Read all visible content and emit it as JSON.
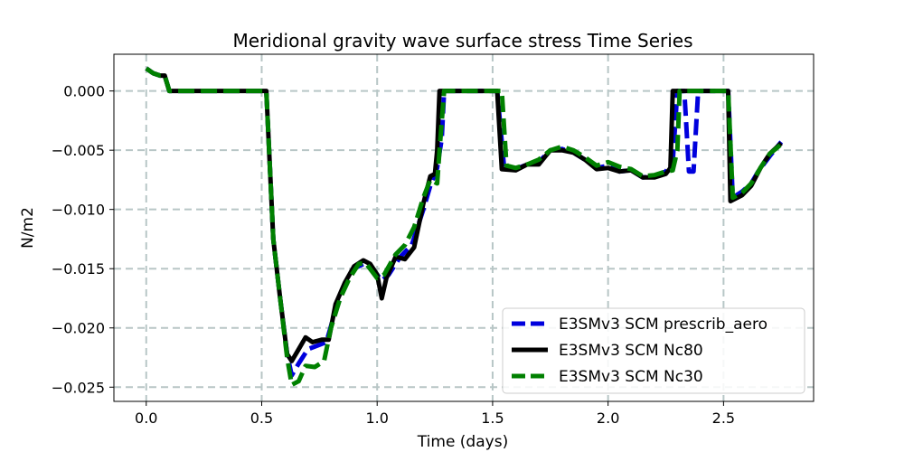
{
  "chart_data": {
    "type": "line",
    "title": "Meridional gravity wave surface stress Time Series",
    "xlabel": "Time (days)",
    "ylabel": "N/m2",
    "xlim": [
      -0.14,
      2.89
    ],
    "ylim": [
      -0.0262,
      0.0031
    ],
    "xticks": [
      0.0,
      0.5,
      1.0,
      1.5,
      2.0,
      2.5
    ],
    "xtick_labels": [
      "0.0",
      "0.5",
      "1.0",
      "1.5",
      "2.0",
      "2.5"
    ],
    "yticks": [
      0.0,
      -0.005,
      -0.01,
      -0.015,
      -0.02,
      -0.025
    ],
    "ytick_labels": [
      "0.000",
      "−0.005",
      "−0.010",
      "−0.015",
      "−0.020",
      "−0.025"
    ],
    "grid": true,
    "legend_position": "lower-right",
    "series": [
      {
        "name": "E3SMv3 SCM prescrib_aero",
        "color": "#0000dd",
        "style": "dashed",
        "points": [
          [
            0.0,
            0.0019
          ],
          [
            0.03,
            0.0015
          ],
          [
            0.06,
            0.0013
          ],
          [
            0.08,
            0.0013
          ],
          [
            0.1,
            0.0
          ],
          [
            0.5,
            0.0
          ],
          [
            0.52,
            0.0
          ],
          [
            0.55,
            -0.0125
          ],
          [
            0.58,
            -0.0175
          ],
          [
            0.61,
            -0.0222
          ],
          [
            0.63,
            -0.024
          ],
          [
            0.66,
            -0.023
          ],
          [
            0.7,
            -0.0218
          ],
          [
            0.74,
            -0.0215
          ],
          [
            0.78,
            -0.0212
          ],
          [
            0.82,
            -0.0185
          ],
          [
            0.86,
            -0.0165
          ],
          [
            0.9,
            -0.015
          ],
          [
            0.95,
            -0.0145
          ],
          [
            1.0,
            -0.0155
          ],
          [
            1.02,
            -0.016
          ],
          [
            1.05,
            -0.0155
          ],
          [
            1.1,
            -0.014
          ],
          [
            1.15,
            -0.013
          ],
          [
            1.2,
            -0.01
          ],
          [
            1.23,
            -0.008
          ],
          [
            1.26,
            -0.0065
          ],
          [
            1.28,
            -0.004
          ],
          [
            1.29,
            0.0
          ],
          [
            1.52,
            0.0
          ],
          [
            1.55,
            -0.0065
          ],
          [
            1.6,
            -0.0066
          ],
          [
            1.65,
            -0.0062
          ],
          [
            1.7,
            -0.006
          ],
          [
            1.75,
            -0.005
          ],
          [
            1.8,
            -0.0049
          ],
          [
            1.85,
            -0.0052
          ],
          [
            1.9,
            -0.0058
          ],
          [
            1.95,
            -0.0065
          ],
          [
            2.0,
            -0.0063
          ],
          [
            2.05,
            -0.0068
          ],
          [
            2.1,
            -0.0067
          ],
          [
            2.15,
            -0.0073
          ],
          [
            2.2,
            -0.0072
          ],
          [
            2.25,
            -0.0068
          ],
          [
            2.28,
            -0.006
          ],
          [
            2.3,
            0.0
          ],
          [
            2.33,
            0.0
          ],
          [
            2.35,
            -0.0068
          ],
          [
            2.37,
            -0.0068
          ],
          [
            2.39,
            0.0
          ],
          [
            2.52,
            0.0
          ],
          [
            2.54,
            -0.009
          ],
          [
            2.58,
            -0.0085
          ],
          [
            2.62,
            -0.0078
          ],
          [
            2.65,
            -0.0068
          ],
          [
            2.7,
            -0.0055
          ],
          [
            2.75,
            -0.0043
          ]
        ]
      },
      {
        "name": "E3SMv3 SCM Nc80",
        "color": "#000000",
        "style": "solid",
        "points": [
          [
            0.0,
            0.0019
          ],
          [
            0.03,
            0.0015
          ],
          [
            0.06,
            0.0013
          ],
          [
            0.08,
            0.0013
          ],
          [
            0.1,
            0.0
          ],
          [
            0.5,
            0.0
          ],
          [
            0.52,
            0.0
          ],
          [
            0.55,
            -0.0125
          ],
          [
            0.58,
            -0.0175
          ],
          [
            0.61,
            -0.0222
          ],
          [
            0.63,
            -0.0228
          ],
          [
            0.66,
            -0.0218
          ],
          [
            0.69,
            -0.0208
          ],
          [
            0.72,
            -0.0212
          ],
          [
            0.76,
            -0.021
          ],
          [
            0.79,
            -0.021
          ],
          [
            0.82,
            -0.018
          ],
          [
            0.86,
            -0.0162
          ],
          [
            0.9,
            -0.0148
          ],
          [
            0.94,
            -0.0143
          ],
          [
            0.97,
            -0.0146
          ],
          [
            1.0,
            -0.0155
          ],
          [
            1.02,
            -0.0175
          ],
          [
            1.04,
            -0.0158
          ],
          [
            1.08,
            -0.014
          ],
          [
            1.12,
            -0.0142
          ],
          [
            1.16,
            -0.0132
          ],
          [
            1.2,
            -0.0095
          ],
          [
            1.23,
            -0.0072
          ],
          [
            1.25,
            -0.007
          ],
          [
            1.26,
            -0.005
          ],
          [
            1.27,
            0.0
          ],
          [
            1.52,
            0.0
          ],
          [
            1.54,
            -0.0066
          ],
          [
            1.6,
            -0.0067
          ],
          [
            1.65,
            -0.0062
          ],
          [
            1.7,
            -0.0062
          ],
          [
            1.75,
            -0.005
          ],
          [
            1.8,
            -0.005
          ],
          [
            1.85,
            -0.0052
          ],
          [
            1.9,
            -0.0058
          ],
          [
            1.95,
            -0.0066
          ],
          [
            2.0,
            -0.0065
          ],
          [
            2.05,
            -0.0068
          ],
          [
            2.1,
            -0.0067
          ],
          [
            2.15,
            -0.0073
          ],
          [
            2.2,
            -0.0073
          ],
          [
            2.25,
            -0.007
          ],
          [
            2.27,
            -0.0065
          ],
          [
            2.28,
            0.0
          ],
          [
            2.52,
            0.0
          ],
          [
            2.53,
            -0.0093
          ],
          [
            2.58,
            -0.0088
          ],
          [
            2.62,
            -0.008
          ],
          [
            2.66,
            -0.0065
          ],
          [
            2.7,
            -0.0053
          ],
          [
            2.75,
            -0.0044
          ]
        ]
      },
      {
        "name": "E3SMv3 SCM Nc30",
        "color": "#008000",
        "style": "dashed",
        "points": [
          [
            0.0,
            0.0019
          ],
          [
            0.03,
            0.0015
          ],
          [
            0.06,
            0.0013
          ],
          [
            0.08,
            0.0013
          ],
          [
            0.1,
            0.0
          ],
          [
            0.5,
            0.0
          ],
          [
            0.52,
            0.0
          ],
          [
            0.55,
            -0.0125
          ],
          [
            0.58,
            -0.0175
          ],
          [
            0.61,
            -0.0225
          ],
          [
            0.63,
            -0.0248
          ],
          [
            0.66,
            -0.0245
          ],
          [
            0.69,
            -0.0232
          ],
          [
            0.73,
            -0.0233
          ],
          [
            0.77,
            -0.0228
          ],
          [
            0.8,
            -0.02
          ],
          [
            0.84,
            -0.0175
          ],
          [
            0.88,
            -0.0158
          ],
          [
            0.92,
            -0.0146
          ],
          [
            0.95,
            -0.0145
          ],
          [
            1.0,
            -0.0158
          ],
          [
            1.03,
            -0.0155
          ],
          [
            1.08,
            -0.0138
          ],
          [
            1.12,
            -0.013
          ],
          [
            1.16,
            -0.0115
          ],
          [
            1.2,
            -0.009
          ],
          [
            1.23,
            -0.0075
          ],
          [
            1.26,
            -0.0078
          ],
          [
            1.27,
            -0.005
          ],
          [
            1.29,
            0.0
          ],
          [
            1.54,
            0.0
          ],
          [
            1.56,
            -0.0063
          ],
          [
            1.6,
            -0.0065
          ],
          [
            1.65,
            -0.0062
          ],
          [
            1.7,
            -0.0058
          ],
          [
            1.75,
            -0.005
          ],
          [
            1.8,
            -0.0047
          ],
          [
            1.85,
            -0.005
          ],
          [
            1.9,
            -0.0056
          ],
          [
            1.95,
            -0.0063
          ],
          [
            2.0,
            -0.006
          ],
          [
            2.05,
            -0.0064
          ],
          [
            2.1,
            -0.0066
          ],
          [
            2.15,
            -0.0072
          ],
          [
            2.2,
            -0.0071
          ],
          [
            2.25,
            -0.0068
          ],
          [
            2.28,
            -0.0067
          ],
          [
            2.3,
            -0.005
          ],
          [
            2.31,
            0.0
          ],
          [
            2.52,
            0.0
          ],
          [
            2.54,
            -0.009
          ],
          [
            2.58,
            -0.0086
          ],
          [
            2.62,
            -0.0078
          ],
          [
            2.66,
            -0.0065
          ],
          [
            2.7,
            -0.0053
          ],
          [
            2.75,
            -0.0045
          ]
        ]
      }
    ]
  }
}
